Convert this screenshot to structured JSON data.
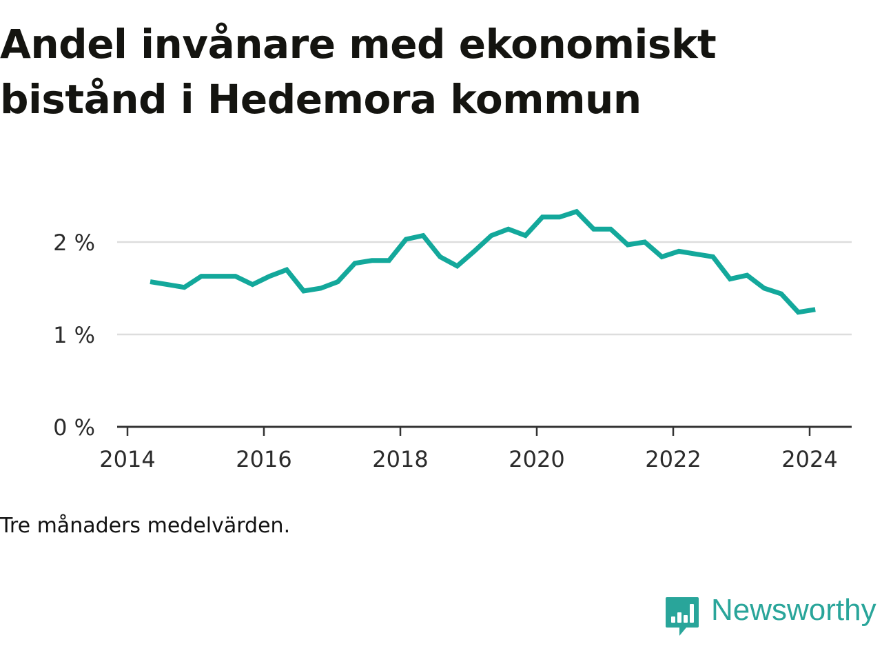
{
  "title": "Andel invånare med ekonomiskt bistånd i Hedemora kommun",
  "note": "Tre månaders medelvärden.",
  "brand": {
    "name": "Newsworthy",
    "icon": "newsworthy-logo-icon",
    "color": "#29a59a"
  },
  "colors": {
    "line": "#13a89b",
    "grid": "#dddddd",
    "axis": "#333333",
    "text": "#2b2b2b"
  },
  "chart_data": {
    "type": "line",
    "title": "Andel invånare med ekonomiskt bistånd i Hedemora kommun",
    "xlabel": "",
    "ylabel": "",
    "x_ticks": [
      "2014",
      "2016",
      "2018",
      "2020",
      "2022",
      "2024"
    ],
    "y_ticks": [
      "0 %",
      "1 %",
      "2 %"
    ],
    "xlim": [
      "2014-01",
      "2024-06"
    ],
    "ylim": [
      0,
      2.5
    ],
    "grid": true,
    "legend": "none",
    "series": [
      {
        "x": [
          "2014-05",
          "2014-08",
          "2014-11",
          "2015-02",
          "2015-05",
          "2015-08",
          "2015-11",
          "2016-02",
          "2016-05",
          "2016-08",
          "2016-11",
          "2017-02",
          "2017-05",
          "2017-08",
          "2017-11",
          "2018-02",
          "2018-05",
          "2018-08",
          "2018-11",
          "2019-02",
          "2019-05",
          "2019-08",
          "2019-11",
          "2020-02",
          "2020-05",
          "2020-08",
          "2020-11",
          "2021-02",
          "2021-05",
          "2021-08",
          "2021-11",
          "2022-02",
          "2022-05",
          "2022-08",
          "2022-11",
          "2023-02",
          "2023-05",
          "2023-08",
          "2023-11",
          "2024-02"
        ],
        "values": [
          1.57,
          1.54,
          1.51,
          1.63,
          1.63,
          1.63,
          1.54,
          1.63,
          1.7,
          1.47,
          1.5,
          1.57,
          1.77,
          1.8,
          1.8,
          2.03,
          2.07,
          1.84,
          1.74,
          1.9,
          2.07,
          2.14,
          2.07,
          2.27,
          2.27,
          2.33,
          2.14,
          2.14,
          1.97,
          2.0,
          1.84,
          1.9,
          1.87,
          1.84,
          1.6,
          1.64,
          1.5,
          1.44,
          1.24,
          1.27
        ]
      }
    ]
  }
}
